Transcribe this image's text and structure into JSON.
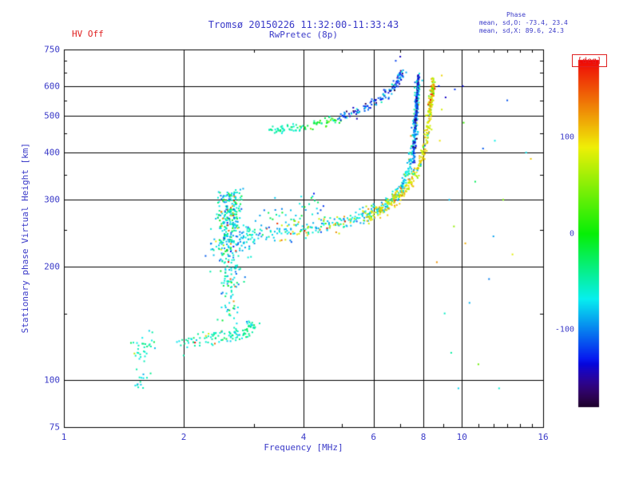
{
  "header": {
    "title": "Tromsø 20150226 11:32:00-11:33:43",
    "subtitle": "RwPretec (8p)",
    "hv_status": "HV Off",
    "phase_box": {
      "title": "Phase",
      "line_o": "mean, sd,O: -73.4, 23.4",
      "line_x": "mean, sd,X:  89.6, 24.3"
    }
  },
  "colors": {
    "text_blue": "#3a3ac8",
    "accent_red": "#e02020",
    "grid_black": "#000000",
    "background": "#ffffff"
  },
  "chart_data": {
    "type": "scatter",
    "title": "Tromsø 20150226 11:32:00-11:33:43",
    "subtitle": "RwPretec (8p)",
    "xlabel": "Frequency [MHz]",
    "ylabel": "Stationary phase Virtual Height [km]",
    "x_scale": "log",
    "y_scale": "log",
    "xlim": [
      1,
      16
    ],
    "ylim": [
      75,
      750
    ],
    "x_ticks": [
      1,
      2,
      4,
      6,
      8,
      10,
      16
    ],
    "x_gridlines": [
      2,
      4,
      6,
      8,
      10
    ],
    "x_minor_ticks": [
      3,
      5,
      7,
      9,
      11,
      12,
      13,
      14,
      15
    ],
    "y_ticks": [
      75,
      100,
      200,
      300,
      400,
      500,
      600,
      750
    ],
    "y_gridlines": [
      100,
      200,
      300,
      400,
      500,
      600
    ],
    "y_minor_ticks": [
      150,
      250,
      350,
      450,
      550,
      650,
      700
    ],
    "grid": true,
    "colorbar": {
      "label": "[deg]",
      "min": -180,
      "max": 180,
      "ticks": [
        100,
        0,
        -100
      ]
    },
    "phase_mean_sd_O": [
      -73.4,
      23.4
    ],
    "phase_mean_sd_X": [
      89.6,
      24.3
    ],
    "traces": [
      {
        "name": "es-cluster-upper",
        "path": [
          [
            1.5,
            118
          ],
          [
            1.58,
            123
          ],
          [
            1.66,
            129
          ]
        ],
        "n": 30,
        "f_jitter": 0.015,
        "h_sd": 5,
        "phase": {
          "mean": -50,
          "sd": 15
        },
        "outlier": {
          "p": 0.04,
          "mean": 95,
          "sd": 40
        }
      },
      {
        "name": "es-cluster-lower",
        "path": [
          [
            1.52,
            96
          ],
          [
            1.62,
            101
          ]
        ],
        "n": 15,
        "f_jitter": 0.012,
        "h_sd": 4,
        "phase": {
          "mean": -58,
          "sd": 14
        }
      },
      {
        "name": "e-trace",
        "path": [
          [
            1.95,
            126
          ],
          [
            2.3,
            128
          ],
          [
            2.6,
            131
          ],
          [
            2.85,
            135
          ],
          [
            3.02,
            141
          ]
        ],
        "n": 115,
        "f_jitter": 0.012,
        "h_sd": 3.5,
        "phase": {
          "mean": -52,
          "sd": 16
        },
        "outlier": {
          "p": 0.06,
          "mean": 105,
          "sd": 50
        }
      },
      {
        "name": "spread-cloud-main",
        "path": [
          [
            2.52,
            212
          ],
          [
            2.56,
            238
          ],
          [
            2.6,
            262
          ],
          [
            2.63,
            286
          ],
          [
            2.66,
            306
          ]
        ],
        "n": 300,
        "f_jitter": 0.035,
        "h_sd": 16,
        "phase": {
          "mean": -60,
          "sd": 30
        },
        "outlier": {
          "p": 0.06,
          "mean": 115,
          "sd": 45
        }
      },
      {
        "name": "spread-cloud-tail",
        "path": [
          [
            2.6,
            152
          ],
          [
            2.63,
            176
          ],
          [
            2.66,
            200
          ]
        ],
        "n": 80,
        "f_jitter": 0.03,
        "h_sd": 12,
        "phase": {
          "mean": -55,
          "sd": 25
        },
        "outlier": {
          "p": 0.05,
          "mean": 110,
          "sd": 40
        }
      },
      {
        "name": "cloud-bridge",
        "path": [
          [
            2.74,
            236
          ],
          [
            2.96,
            242
          ]
        ],
        "n": 50,
        "f_jitter": 0.03,
        "h_sd": 12,
        "phase": {
          "mean": -65,
          "sd": 28
        }
      },
      {
        "name": "f-o-trace",
        "path": [
          [
            2.95,
            240
          ],
          [
            3.5,
            246
          ],
          [
            4.1,
            252
          ],
          [
            4.8,
            259
          ],
          [
            5.4,
            267
          ],
          [
            5.9,
            276
          ],
          [
            6.35,
            288
          ],
          [
            6.7,
            302
          ],
          [
            7.0,
            320
          ],
          [
            7.25,
            345
          ],
          [
            7.45,
            380
          ],
          [
            7.58,
            430
          ],
          [
            7.67,
            490
          ],
          [
            7.73,
            555
          ],
          [
            7.78,
            625
          ]
        ],
        "n": 380,
        "f_jitter": 0.008,
        "h_sd": 6,
        "phase": {
          "mean": -73,
          "sd": 20
        },
        "outlier": {
          "p": 0.05,
          "mean": 90,
          "sd": 40
        }
      },
      {
        "name": "f-o-halo",
        "path": [
          [
            3.1,
            262
          ],
          [
            3.9,
            274
          ],
          [
            4.6,
            288
          ]
        ],
        "n": 45,
        "f_jitter": 0.02,
        "h_sd": 18,
        "phase": {
          "mean": -65,
          "sd": 30
        }
      },
      {
        "name": "f-x-trace",
        "path": [
          [
            5.7,
            268
          ],
          [
            6.2,
            280
          ],
          [
            6.7,
            295
          ],
          [
            7.1,
            312
          ],
          [
            7.5,
            338
          ],
          [
            7.85,
            372
          ],
          [
            8.1,
            420
          ],
          [
            8.25,
            475
          ],
          [
            8.35,
            540
          ],
          [
            8.43,
            602
          ]
        ],
        "n": 300,
        "f_jitter": 0.008,
        "h_sd": 6,
        "phase": {
          "mean": 88,
          "sd": 20
        },
        "outlier": {
          "p": 0.04,
          "mean": -70,
          "sd": 40
        }
      },
      {
        "name": "f-x-sprinkle",
        "path": [
          [
            3.4,
            248
          ],
          [
            4.4,
            257
          ],
          [
            5.3,
            266
          ]
        ],
        "n": 35,
        "f_jitter": 0.02,
        "h_sd": 10,
        "phase": {
          "mean": 85,
          "sd": 35
        }
      },
      {
        "name": "upper-arc-left",
        "path": [
          [
            3.3,
            455
          ],
          [
            3.6,
            461
          ],
          [
            3.95,
            467
          ]
        ],
        "n": 45,
        "f_jitter": 0.01,
        "h_sd": 6,
        "phase": {
          "mean": -45,
          "sd": 14
        }
      },
      {
        "name": "upper-arc-mid",
        "path": [
          [
            3.95,
            468
          ],
          [
            4.5,
            480
          ],
          [
            4.9,
            492
          ]
        ],
        "n": 40,
        "f_jitter": 0.012,
        "h_sd": 7,
        "phase": {
          "mean": -5,
          "sd": 35
        }
      },
      {
        "name": "upper-arc-right",
        "path": [
          [
            4.9,
            494
          ],
          [
            5.4,
            510
          ],
          [
            5.9,
            532
          ],
          [
            6.35,
            560
          ],
          [
            6.7,
            592
          ],
          [
            6.95,
            625
          ],
          [
            7.1,
            655
          ]
        ],
        "n": 130,
        "f_jitter": 0.01,
        "h_sd": 8,
        "phase": {
          "mean": -112,
          "sd": 28
        }
      },
      {
        "name": "o-asymptote-dark",
        "path": [
          [
            7.56,
            380
          ],
          [
            7.62,
            440
          ],
          [
            7.68,
            510
          ],
          [
            7.73,
            575
          ],
          [
            7.78,
            648
          ]
        ],
        "n": 140,
        "f_jitter": 0.004,
        "h_sd": 10,
        "phase": {
          "mean": -122,
          "sd": 30
        }
      },
      {
        "name": "x-top-blob",
        "path": [
          [
            8.3,
            520
          ],
          [
            8.4,
            560
          ],
          [
            8.46,
            598
          ],
          [
            8.5,
            618
          ]
        ],
        "n": 55,
        "f_jitter": 0.006,
        "h_sd": 10,
        "phase": {
          "mean": 95,
          "sd": 35
        }
      }
    ],
    "outliers": [
      [
        8.75,
        600,
        -130
      ],
      [
        8.9,
        640,
        100
      ],
      [
        9.1,
        560,
        -140
      ],
      [
        9.6,
        588,
        -120
      ],
      [
        10.05,
        600,
        -135
      ],
      [
        8.8,
        430,
        95
      ],
      [
        9.3,
        300,
        -80
      ],
      [
        9.55,
        255,
        55
      ],
      [
        10.2,
        230,
        115
      ],
      [
        10.45,
        160,
        -85
      ],
      [
        11.3,
        410,
        -110
      ],
      [
        12.1,
        430,
        -65
      ],
      [
        12.7,
        300,
        45
      ],
      [
        9.05,
        150,
        -55
      ],
      [
        9.4,
        118,
        -45
      ],
      [
        8.65,
        205,
        125
      ],
      [
        10.8,
        335,
        -25
      ],
      [
        11.7,
        185,
        -100
      ],
      [
        13.4,
        215,
        85
      ],
      [
        14.5,
        400,
        -70
      ],
      [
        14.9,
        385,
        105
      ],
      [
        12.4,
        95,
        -60
      ],
      [
        7.0,
        718,
        -140
      ],
      [
        6.82,
        700,
        -118
      ],
      [
        10.1,
        480,
        20
      ],
      [
        8.9,
        520,
        80
      ],
      [
        13.0,
        550,
        -112
      ],
      [
        9.8,
        95,
        -75
      ],
      [
        11.0,
        110,
        40
      ],
      [
        12.0,
        240,
        -90
      ]
    ]
  }
}
